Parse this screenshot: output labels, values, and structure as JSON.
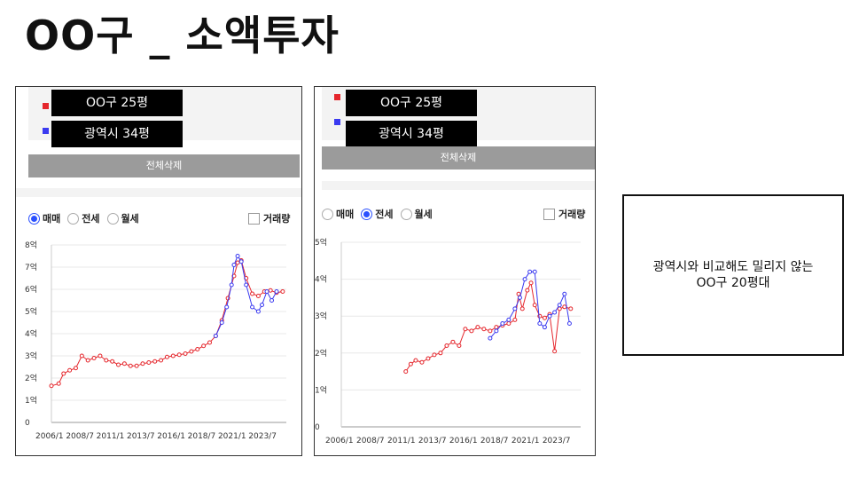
{
  "page_title": "OO구 _ 소액투자",
  "panels": [
    {
      "legend": [
        {
          "label": "OO구 25평",
          "color": "#e5262c"
        },
        {
          "label": "광역시 34평",
          "color": "#3a3af0"
        }
      ],
      "clear_label": "전체삭제",
      "radio_options": [
        {
          "label": "매매",
          "selected": true
        },
        {
          "label": "전세",
          "selected": false
        },
        {
          "label": "월세",
          "selected": false
        }
      ],
      "volume_label": "거래량",
      "volume_checked": false
    },
    {
      "legend": [
        {
          "label": "OO구 25평",
          "color": "#e5262c"
        },
        {
          "label": "광역시 34평",
          "color": "#3a3af0"
        }
      ],
      "clear_label": "전체삭제",
      "radio_options": [
        {
          "label": "매매",
          "selected": false
        },
        {
          "label": "전세",
          "selected": true
        },
        {
          "label": "월세",
          "selected": false
        }
      ],
      "volume_label": "거래량",
      "volume_checked": false
    }
  ],
  "chart_data": [
    {
      "type": "line",
      "y_unit": "억",
      "ylim": [
        0,
        8
      ],
      "y_ticks": [
        "0",
        "1억",
        "2억",
        "3억",
        "4억",
        "5억",
        "6억",
        "7억",
        "8억"
      ],
      "x_ticks": [
        "2006/1",
        "2008/7",
        "2011/1",
        "2013/7",
        "2016/1",
        "2018/7",
        "2021/1",
        "2023/7"
      ],
      "xlim": [
        2006.0,
        2025.3
      ],
      "grid": true,
      "series": [
        {
          "name": "OO구 25평",
          "color": "#e5262c",
          "x": [
            2006.0,
            2006.6,
            2007.0,
            2007.5,
            2008.0,
            2008.5,
            2009.0,
            2009.5,
            2010.0,
            2010.5,
            2011.0,
            2011.5,
            2012.0,
            2012.5,
            2013.0,
            2013.5,
            2014.0,
            2014.5,
            2015.0,
            2015.5,
            2016.0,
            2016.5,
            2017.0,
            2017.5,
            2018.0,
            2018.5,
            2019.0,
            2019.5,
            2020.0,
            2020.5,
            2021.0,
            2021.3,
            2021.6,
            2022.0,
            2022.5,
            2023.0,
            2023.5,
            2024.0,
            2024.5,
            2025.0
          ],
          "values": [
            1.65,
            1.75,
            2.2,
            2.35,
            2.45,
            3.0,
            2.8,
            2.9,
            3.0,
            2.8,
            2.75,
            2.6,
            2.65,
            2.55,
            2.55,
            2.65,
            2.7,
            2.75,
            2.8,
            2.95,
            3.0,
            3.05,
            3.1,
            3.2,
            3.3,
            3.45,
            3.6,
            3.9,
            4.6,
            5.6,
            6.6,
            7.2,
            7.3,
            6.5,
            5.8,
            5.7,
            5.9,
            5.95,
            5.85,
            5.9
          ]
        },
        {
          "name": "광역시 34평",
          "color": "#3a3af0",
          "x": [
            2019.5,
            2020.0,
            2020.4,
            2020.8,
            2021.0,
            2021.3,
            2021.6,
            2022.0,
            2022.5,
            2023.0,
            2023.3,
            2023.7,
            2024.1,
            2024.5
          ],
          "values": [
            3.9,
            4.5,
            5.2,
            6.2,
            7.1,
            7.5,
            7.25,
            6.2,
            5.2,
            5.0,
            5.3,
            5.9,
            5.5,
            5.9
          ]
        }
      ]
    },
    {
      "type": "line",
      "y_unit": "억",
      "ylim": [
        0,
        5
      ],
      "y_ticks": [
        "0",
        "1억",
        "2억",
        "3억",
        "4억",
        "5억"
      ],
      "x_ticks": [
        "2006/1",
        "2008/7",
        "2011/1",
        "2013/7",
        "2016/1",
        "2018/7",
        "2021/1",
        "2023/7"
      ],
      "xlim": [
        2006.0,
        2025.3
      ],
      "grid": true,
      "series": [
        {
          "name": "OO구 25평",
          "color": "#e5262c",
          "x": [
            2011.2,
            2011.6,
            2012.0,
            2012.5,
            2013.0,
            2013.5,
            2014.0,
            2014.5,
            2015.0,
            2015.5,
            2016.0,
            2016.5,
            2017.0,
            2017.5,
            2018.0,
            2018.5,
            2019.0,
            2019.5,
            2020.0,
            2020.3,
            2020.6,
            2021.0,
            2021.3,
            2021.6,
            2022.0,
            2022.4,
            2022.8,
            2023.2,
            2023.6,
            2024.0,
            2024.5
          ],
          "values": [
            1.5,
            1.7,
            1.8,
            1.75,
            1.85,
            1.95,
            2.0,
            2.2,
            2.3,
            2.2,
            2.65,
            2.6,
            2.7,
            2.65,
            2.6,
            2.7,
            2.75,
            2.8,
            2.9,
            3.6,
            3.2,
            3.7,
            3.9,
            3.3,
            3.0,
            2.95,
            3.05,
            2.05,
            3.2,
            3.25,
            3.2
          ]
        },
        {
          "name": "광역시 34평",
          "color": "#3a3af0",
          "x": [
            2018.0,
            2018.5,
            2019.0,
            2019.5,
            2020.0,
            2020.4,
            2020.8,
            2021.2,
            2021.6,
            2022.0,
            2022.4,
            2022.8,
            2023.2,
            2023.6,
            2024.0,
            2024.4
          ],
          "values": [
            2.4,
            2.6,
            2.8,
            2.9,
            3.2,
            3.5,
            4.0,
            4.2,
            4.2,
            2.8,
            2.7,
            3.0,
            3.1,
            3.3,
            3.6,
            2.8
          ]
        }
      ]
    }
  ],
  "note": {
    "line1": "광역시와 비교해도 밀리지 않는",
    "line2": "OO구 20평대"
  }
}
